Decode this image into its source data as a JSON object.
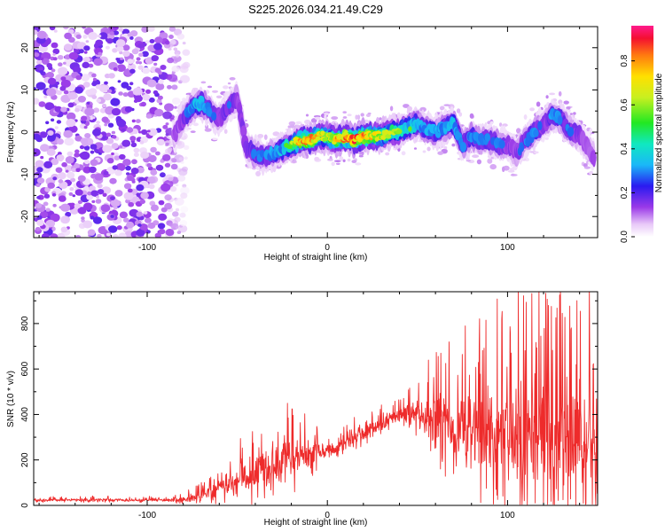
{
  "title": "S225.2026.034.21.49.C29",
  "colors": {
    "snr_line": "#ee2b2b",
    "frame": "#000000"
  },
  "chart_data": [
    {
      "type": "heatmap",
      "title": "S225.2026.034.21.49.C29",
      "xlabel": "Height of straight line (km)",
      "ylabel": "Frequency (Hz)",
      "xlim": [
        -163,
        150
      ],
      "ylim": [
        -25,
        25
      ],
      "xticks": [
        -100,
        0,
        100
      ],
      "xtick_labels": [
        "-100",
        "0",
        "100"
      ],
      "yticks": [
        -20,
        -10,
        0,
        10,
        20
      ],
      "ytick_labels": [
        "-20",
        "-10",
        "0",
        "10",
        "20"
      ],
      "colorbar": {
        "label": "Normalized spectral amplitude",
        "range": [
          0,
          0.96
        ],
        "ticks": [
          0,
          0.2,
          0.4,
          0.6,
          0.8
        ],
        "tick_labels": [
          "0.0",
          "0.2",
          "0.4",
          "0.6",
          "0.8"
        ],
        "colormap": "rainbow (white → violet → blue → cyan → green → yellow → orange → red → magenta)"
      },
      "ridge": {
        "description": "Frequency of the spectral ridge vs height (Hz); noisy speckle below -80 km",
        "x": [
          -85,
          -80,
          -75,
          -70,
          -65,
          -60,
          -55,
          -50,
          -45,
          -40,
          -35,
          -30,
          -25,
          -20,
          -15,
          -10,
          -5,
          0,
          5,
          10,
          15,
          20,
          25,
          30,
          35,
          40,
          45,
          50,
          55,
          60,
          65,
          70,
          75,
          80,
          85,
          90,
          95,
          100,
          105,
          110,
          115,
          120,
          125,
          130,
          135,
          140,
          145,
          148
        ],
        "freq": [
          -1,
          3,
          6,
          7,
          5,
          3,
          6,
          8,
          -4,
          -5,
          -6,
          -5,
          -4,
          -3,
          -2,
          -2,
          -1,
          -1,
          -2,
          -1,
          -2,
          -1,
          -1,
          -1,
          0,
          0,
          1,
          2,
          1,
          0,
          1,
          2,
          -3,
          -1,
          -2,
          -2,
          -3,
          -3,
          -5,
          -2,
          0,
          2,
          4,
          3,
          0,
          -1,
          -4,
          -6
        ],
        "peak_amplitude": [
          0.3,
          0.35,
          0.45,
          0.5,
          0.4,
          0.35,
          0.4,
          0.35,
          0.35,
          0.4,
          0.4,
          0.45,
          0.5,
          0.6,
          0.8,
          0.85,
          0.75,
          0.65,
          0.8,
          0.85,
          0.9,
          0.85,
          0.75,
          0.7,
          0.65,
          0.6,
          0.55,
          0.5,
          0.45,
          0.45,
          0.45,
          0.5,
          0.4,
          0.45,
          0.4,
          0.4,
          0.4,
          0.35,
          0.35,
          0.4,
          0.45,
          0.35,
          0.45,
          0.4,
          0.4,
          0.35,
          0.3,
          0.3
        ]
      }
    },
    {
      "type": "line",
      "xlabel": "Height of straight line (km)",
      "ylabel": "SNR (10 * v/v)",
      "xlim": [
        -163,
        150
      ],
      "ylim": [
        0,
        940
      ],
      "xticks": [
        -100,
        0,
        100
      ],
      "xtick_labels": [
        "-100",
        "0",
        "100"
      ],
      "yticks": [
        0,
        200,
        400,
        600,
        800
      ],
      "ytick_labels": [
        "0",
        "200",
        "400",
        "600",
        "800"
      ],
      "series": [
        {
          "name": "SNR",
          "envelope": {
            "description": "Baseline and upper excursion of the noisy SNR trace vs height",
            "x": [
              -163,
              -140,
              -120,
              -100,
              -85,
              -75,
              -65,
              -55,
              -45,
              -35,
              -25,
              -15,
              -5,
              5,
              15,
              25,
              35,
              45,
              55,
              65,
              75,
              85,
              95,
              105,
              115,
              125,
              135,
              145,
              150
            ],
            "base": [
              22,
              24,
              24,
              24,
              24,
              30,
              60,
              95,
              130,
              175,
              200,
              220,
              235,
              250,
              300,
              340,
              380,
              410,
              400,
              380,
              360,
              340,
              330,
              320,
              320,
              310,
              300,
              290,
              290
            ],
            "spread": [
              10,
              12,
              12,
              12,
              14,
              30,
              60,
              90,
              130,
              170,
              180,
              160,
              80,
              50,
              60,
              60,
              50,
              80,
              200,
              260,
              300,
              340,
              380,
              400,
              420,
              430,
              440,
              450,
              450
            ]
          }
        }
      ]
    }
  ]
}
